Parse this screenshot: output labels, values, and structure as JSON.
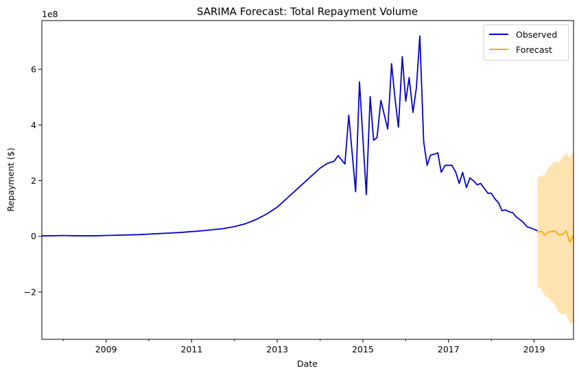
{
  "chart_data": {
    "type": "line",
    "title": "SARIMA Forecast: Total Repayment Volume",
    "xlabel": "Date",
    "ylabel": "Repayment ($)",
    "y_offset_label": "1e8",
    "y_scale": 100000000,
    "xlim": [
      2007.5,
      2019.92
    ],
    "ylim": [
      -3.7,
      7.75
    ],
    "x_ticks": [
      {
        "value": 2009,
        "label": "2009"
      },
      {
        "value": 2011,
        "label": "2011"
      },
      {
        "value": 2013,
        "label": "2013"
      },
      {
        "value": 2015,
        "label": "2015"
      },
      {
        "value": 2017,
        "label": "2017"
      },
      {
        "value": 2019,
        "label": "2019"
      }
    ],
    "x_minor_ticks": [
      2008,
      2010,
      2012,
      2014,
      2016,
      2018
    ],
    "y_ticks": [
      {
        "value": -2,
        "label": "−2"
      },
      {
        "value": 0,
        "label": "0"
      },
      {
        "value": 2,
        "label": "2"
      },
      {
        "value": 4,
        "label": "4"
      },
      {
        "value": 6,
        "label": "6"
      }
    ],
    "legend": {
      "position": "top-right",
      "entries": [
        {
          "label": "Observed",
          "color": "#0000cc"
        },
        {
          "label": "Forecast",
          "color": "#ffa500"
        }
      ]
    },
    "series": [
      {
        "name": "Observed",
        "color": "#0000cc",
        "points": [
          [
            2007.5,
            0.02
          ],
          [
            2007.75,
            0.02
          ],
          [
            2008.0,
            0.03
          ],
          [
            2008.25,
            0.02
          ],
          [
            2008.5,
            0.02
          ],
          [
            2008.75,
            0.02
          ],
          [
            2009.0,
            0.03
          ],
          [
            2009.25,
            0.04
          ],
          [
            2009.5,
            0.05
          ],
          [
            2009.75,
            0.06
          ],
          [
            2010.0,
            0.08
          ],
          [
            2010.25,
            0.1
          ],
          [
            2010.5,
            0.12
          ],
          [
            2010.75,
            0.14
          ],
          [
            2011.0,
            0.17
          ],
          [
            2011.25,
            0.2
          ],
          [
            2011.5,
            0.24
          ],
          [
            2011.75,
            0.28
          ],
          [
            2012.0,
            0.35
          ],
          [
            2012.25,
            0.45
          ],
          [
            2012.5,
            0.6
          ],
          [
            2012.75,
            0.8
          ],
          [
            2013.0,
            1.05
          ],
          [
            2013.25,
            1.4
          ],
          [
            2013.5,
            1.75
          ],
          [
            2013.75,
            2.1
          ],
          [
            2014.0,
            2.45
          ],
          [
            2014.17,
            2.62
          ],
          [
            2014.33,
            2.7
          ],
          [
            2014.42,
            2.9
          ],
          [
            2014.58,
            2.6
          ],
          [
            2014.67,
            4.35
          ],
          [
            2014.83,
            1.6
          ],
          [
            2014.92,
            5.55
          ],
          [
            2015.08,
            1.5
          ],
          [
            2015.17,
            5.02
          ],
          [
            2015.25,
            3.45
          ],
          [
            2015.33,
            3.55
          ],
          [
            2015.42,
            4.88
          ],
          [
            2015.58,
            3.85
          ],
          [
            2015.67,
            6.2
          ],
          [
            2015.75,
            4.95
          ],
          [
            2015.83,
            3.92
          ],
          [
            2015.92,
            6.45
          ],
          [
            2016.0,
            4.85
          ],
          [
            2016.08,
            5.7
          ],
          [
            2016.17,
            4.45
          ],
          [
            2016.25,
            5.35
          ],
          [
            2016.33,
            7.2
          ],
          [
            2016.42,
            3.4
          ],
          [
            2016.5,
            2.55
          ],
          [
            2016.58,
            2.92
          ],
          [
            2016.67,
            2.95
          ],
          [
            2016.75,
            3.0
          ],
          [
            2016.83,
            2.3
          ],
          [
            2016.92,
            2.55
          ],
          [
            2017.0,
            2.55
          ],
          [
            2017.08,
            2.55
          ],
          [
            2017.17,
            2.3
          ],
          [
            2017.25,
            1.9
          ],
          [
            2017.33,
            2.3
          ],
          [
            2017.42,
            1.75
          ],
          [
            2017.5,
            2.1
          ],
          [
            2017.58,
            2.0
          ],
          [
            2017.67,
            1.85
          ],
          [
            2017.75,
            1.9
          ],
          [
            2017.92,
            1.55
          ],
          [
            2018.0,
            1.55
          ],
          [
            2018.08,
            1.35
          ],
          [
            2018.17,
            1.2
          ],
          [
            2018.25,
            0.92
          ],
          [
            2018.33,
            0.95
          ],
          [
            2018.42,
            0.88
          ],
          [
            2018.5,
            0.85
          ],
          [
            2018.58,
            0.7
          ],
          [
            2018.67,
            0.6
          ],
          [
            2018.75,
            0.5
          ],
          [
            2018.83,
            0.35
          ],
          [
            2018.92,
            0.3
          ],
          [
            2019.0,
            0.25
          ],
          [
            2019.08,
            0.2
          ]
        ]
      },
      {
        "name": "Forecast",
        "color": "#ffa500",
        "points": [
          [
            2019.08,
            0.15
          ],
          [
            2019.17,
            0.18
          ],
          [
            2019.25,
            0.05
          ],
          [
            2019.33,
            0.15
          ],
          [
            2019.42,
            0.18
          ],
          [
            2019.5,
            0.18
          ],
          [
            2019.58,
            0.05
          ],
          [
            2019.67,
            0.08
          ],
          [
            2019.75,
            0.2
          ],
          [
            2019.83,
            -0.2
          ],
          [
            2019.92,
            0.03
          ],
          [
            2020.0,
            0.05
          ]
        ],
        "interval_upper": [
          [
            2019.08,
            2.1
          ],
          [
            2019.17,
            2.18
          ],
          [
            2019.25,
            2.2
          ],
          [
            2019.33,
            2.45
          ],
          [
            2019.42,
            2.6
          ],
          [
            2019.5,
            2.7
          ],
          [
            2019.58,
            2.65
          ],
          [
            2019.67,
            2.85
          ],
          [
            2019.75,
            3.0
          ],
          [
            2019.83,
            2.8
          ],
          [
            2019.92,
            3.1
          ],
          [
            2020.0,
            3.2
          ]
        ],
        "interval_lower": [
          [
            2019.08,
            -1.8
          ],
          [
            2019.17,
            -1.9
          ],
          [
            2019.25,
            -2.15
          ],
          [
            2019.33,
            -2.2
          ],
          [
            2019.42,
            -2.35
          ],
          [
            2019.5,
            -2.5
          ],
          [
            2019.58,
            -2.75
          ],
          [
            2019.67,
            -2.8
          ],
          [
            2019.75,
            -2.8
          ],
          [
            2019.83,
            -3.15
          ],
          [
            2019.92,
            -3.1
          ],
          [
            2020.0,
            -3.1
          ]
        ]
      }
    ]
  }
}
